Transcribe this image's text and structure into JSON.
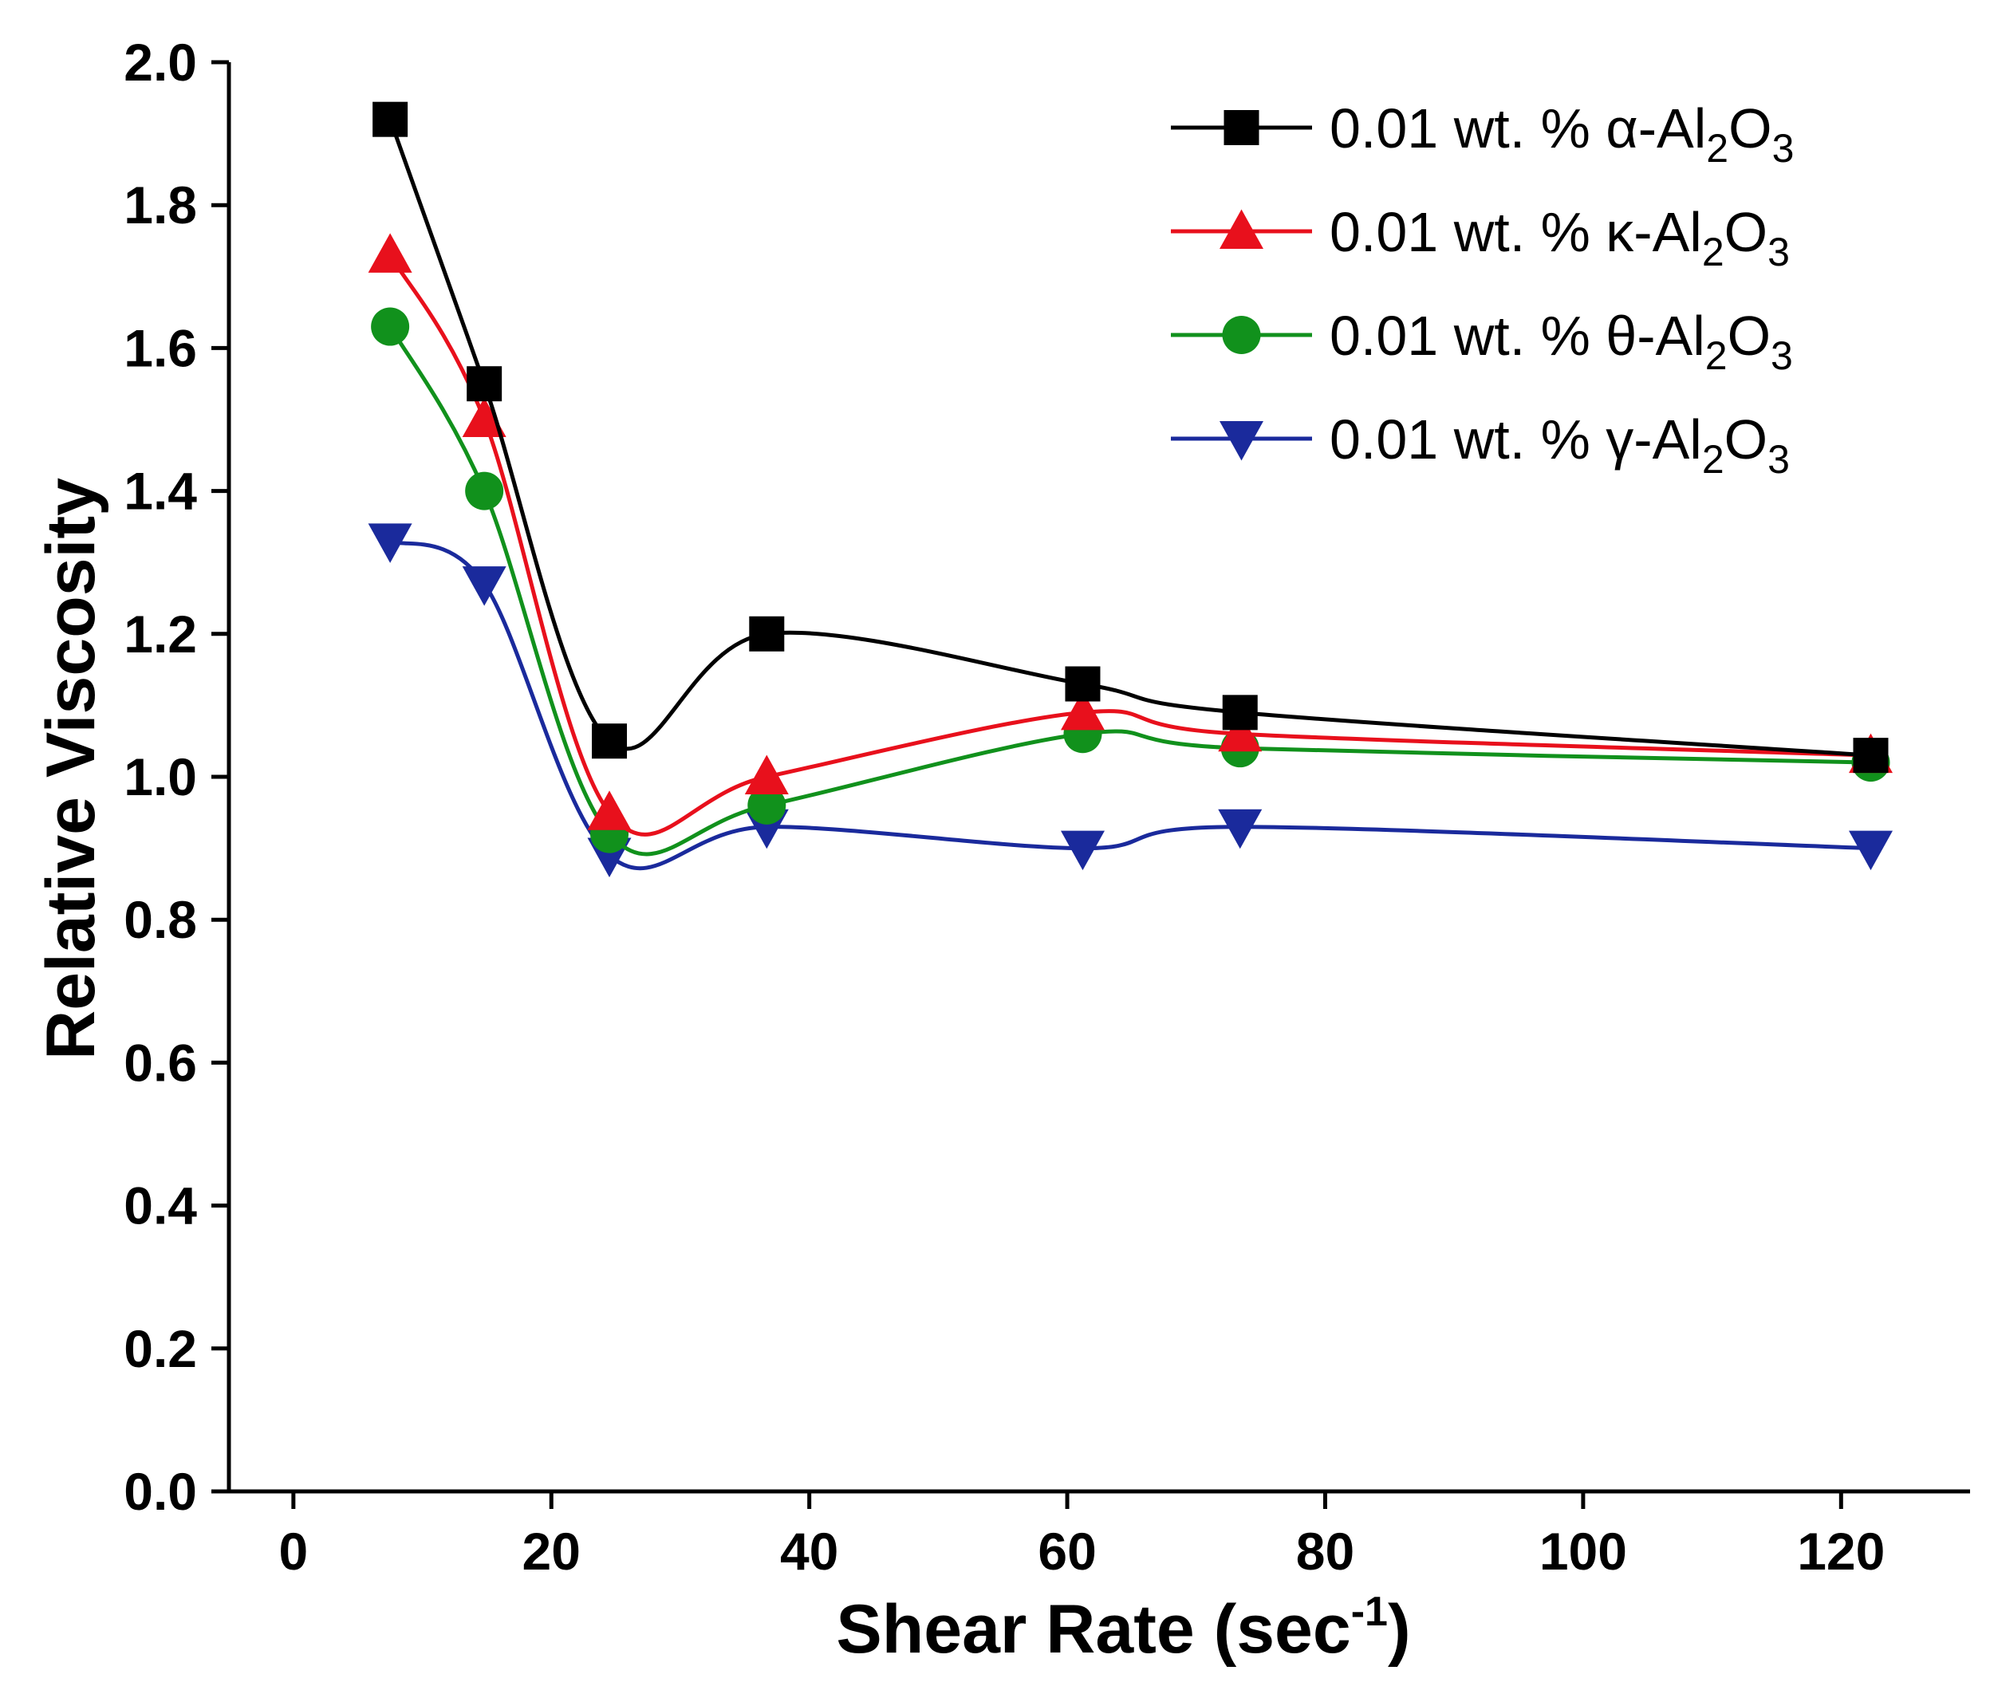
{
  "chart_data": {
    "type": "line",
    "xlabel": "Shear Rate (sec",
    "xlabel_superscript": "-1",
    "xlabel_suffix": ")",
    "ylabel": "Relative Viscosity",
    "xlim": [
      -5,
      130
    ],
    "ylim": [
      0.0,
      2.0
    ],
    "x_ticks": [
      0,
      20,
      40,
      60,
      80,
      100,
      120
    ],
    "x_tick_labels": [
      "0",
      "20",
      "40",
      "60",
      "80",
      "100",
      "120"
    ],
    "y_ticks": [
      0.0,
      0.2,
      0.4,
      0.6,
      0.8,
      1.0,
      1.2,
      1.4,
      1.6,
      1.8,
      2.0
    ],
    "y_tick_labels": [
      "0.0",
      "0.2",
      "0.4",
      "0.6",
      "0.8",
      "1.0",
      "1.2",
      "1.4",
      "1.6",
      "1.8",
      "2.0"
    ],
    "grid": false,
    "legend_position": "top-right",
    "x": [
      7.5,
      14.8,
      24.5,
      36.7,
      61.2,
      73.4,
      122.3
    ],
    "series": [
      {
        "name": "0.01 wt. % α-Al2O3",
        "legend_prefix": "0.01 wt. % α-Al",
        "legend_sub1": "2",
        "legend_mid": "O",
        "legend_sub2": "3",
        "color": "#000000",
        "marker": "square",
        "values": [
          1.92,
          1.55,
          1.05,
          1.2,
          1.13,
          1.09,
          1.03
        ]
      },
      {
        "name": "0.01 wt. % κ-Al2O3",
        "legend_prefix": "0.01 wt. % κ-Al",
        "legend_sub1": "2",
        "legend_mid": "O",
        "legend_sub2": "3",
        "color": "#e8101c",
        "marker": "triangle-up",
        "values": [
          1.73,
          1.5,
          0.95,
          1.0,
          1.09,
          1.06,
          1.03
        ]
      },
      {
        "name": "0.01 wt. % θ-Al2O3",
        "legend_prefix": "0.01 wt. % θ-Al",
        "legend_sub1": "2",
        "legend_mid": "O",
        "legend_sub2": "3",
        "color": "#11911c",
        "marker": "circle",
        "values": [
          1.63,
          1.4,
          0.92,
          0.96,
          1.06,
          1.04,
          1.02
        ]
      },
      {
        "name": "0.01 wt. % γ-Al2O3",
        "legend_prefix": "0.01 wt. % γ-Al",
        "legend_sub1": "2",
        "legend_mid": "O",
        "legend_sub2": "3",
        "color": "#1a2a9c",
        "marker": "triangle-down",
        "values": [
          1.33,
          1.27,
          0.89,
          0.93,
          0.9,
          0.93,
          0.9
        ]
      }
    ]
  }
}
